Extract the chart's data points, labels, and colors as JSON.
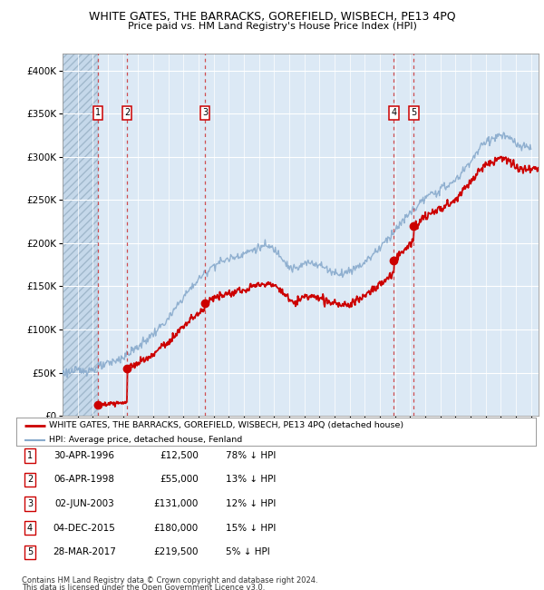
{
  "title": "WHITE GATES, THE BARRACKS, GOREFIELD, WISBECH, PE13 4PQ",
  "subtitle": "Price paid vs. HM Land Registry's House Price Index (HPI)",
  "footer1": "Contains HM Land Registry data © Crown copyright and database right 2024.",
  "footer2": "This data is licensed under the Open Government Licence v3.0.",
  "legend_line1": "WHITE GATES, THE BARRACKS, GOREFIELD, WISBECH, PE13 4PQ (detached house)",
  "legend_line2": "HPI: Average price, detached house, Fenland",
  "transactions": [
    {
      "num": 1,
      "date": "30-APR-1996",
      "price": 12500,
      "pct": "78% ↓ HPI",
      "year": 1996.33
    },
    {
      "num": 2,
      "date": "06-APR-1998",
      "price": 55000,
      "pct": "13% ↓ HPI",
      "year": 1998.27
    },
    {
      "num": 3,
      "date": "02-JUN-2003",
      "price": 131000,
      "pct": "12% ↓ HPI",
      "year": 2003.42
    },
    {
      "num": 4,
      "date": "04-DEC-2015",
      "price": 180000,
      "pct": "15% ↓ HPI",
      "year": 2015.92
    },
    {
      "num": 5,
      "date": "28-MAR-2017",
      "price": 219500,
      "pct": "5% ↓ HPI",
      "year": 2017.24
    }
  ],
  "price_line_color": "#cc0000",
  "hpi_line_color": "#88aacc",
  "dashed_line_color": "#cc3333",
  "dot_color": "#cc0000",
  "marker_box_color": "#cc0000",
  "bg_color": "#dce9f5",
  "ylim": [
    0,
    420000
  ],
  "xlim_start": 1994.0,
  "xlim_end": 2025.5,
  "yticks": [
    0,
    50000,
    100000,
    150000,
    200000,
    250000,
    300000,
    350000,
    400000
  ],
  "ytick_labels": [
    "£0",
    "£50K",
    "£100K",
    "£150K",
    "£200K",
    "£250K",
    "£300K",
    "£350K",
    "£400K"
  ]
}
